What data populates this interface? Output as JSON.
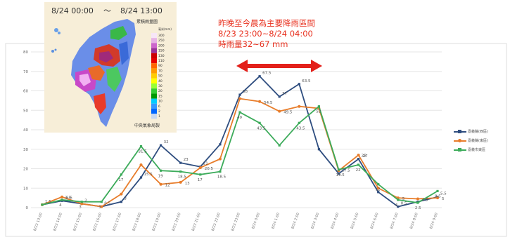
{
  "annotation": {
    "line1": "昨晚至今晨為主要降雨區間",
    "line2": "8/23 23:00~8/24 04:00",
    "line3": "時雨量32~67 mm"
  },
  "inset": {
    "title_left": "8/24 00:00",
    "title_sep": "～",
    "title_right": "8/24 13:00",
    "map_title": "累積雨量圖",
    "unit": "毫米(mm)",
    "scale_labels": [
      "300",
      "250",
      "200",
      "150",
      "130",
      "110",
      "90",
      "70",
      "50",
      "40",
      "30",
      "20",
      "15",
      "10",
      "6",
      "2",
      "1"
    ],
    "credit": "中央氣象局製"
  },
  "colors": {
    "blue": "#2e4d7f",
    "orange": "#e87d2b",
    "green": "#3cab5a",
    "arrow": "#e3201b",
    "annotation": "#e8301e"
  },
  "chart_data": {
    "type": "line",
    "ylim": [
      0,
      80
    ],
    "yticks": [
      0,
      10,
      20,
      30,
      40,
      50,
      60,
      70,
      80
    ],
    "categories": [
      "8/23 13:00",
      "8/23 14:00",
      "8/23 15:00",
      "8/23 16:00",
      "8/23 17:00",
      "8/23 18:00",
      "8/23 19:00",
      "8/23 20:00",
      "8/23 21:00",
      "8/23 22:00",
      "8/23 23:00",
      "8/24 0:00",
      "8/24 1:00",
      "8/24 2:00",
      "8/24 3:00",
      "8/24 4:00",
      "8/24 5:00",
      "8/24 6:00",
      "8/24 7:00",
      "8/24 8:00",
      "8/24 9:00"
    ],
    "series": [
      {
        "name": "嘉義縣(西區)",
        "color": "#2e4d7f",
        "values": [
          1.5,
          3.5,
          2,
          0.5,
          3,
          15.5,
          32,
          23,
          21,
          32.5,
          58,
          67.5,
          57,
          63.5,
          30,
          17.5,
          25,
          8,
          0.5,
          3,
          5.5
        ],
        "labels": [
          "1.5",
          "3.5",
          "2",
          "0.5",
          "3",
          "15.5",
          "32",
          "23",
          "21",
          "",
          "58",
          "67.5",
          "57",
          "63.5",
          "",
          "17.5",
          "25",
          "",
          "0.5",
          "",
          "5.5"
        ]
      },
      {
        "name": "嘉義縣(東區)",
        "color": "#e87d2b",
        "values": [
          1.5,
          5.5,
          2,
          0.5,
          7,
          22,
          12,
          13,
          20.5,
          25,
          56,
          54.5,
          49.5,
          52,
          51,
          19,
          27,
          10,
          5,
          4.5,
          5
        ],
        "labels": [
          "",
          "5.5",
          "",
          "",
          "",
          "",
          "12",
          "13",
          "20.5",
          "",
          "",
          "54.5",
          "49.5",
          "",
          "",
          "",
          "27",
          "",
          "5",
          "4.5",
          "5"
        ]
      },
      {
        "name": "嘉義市東區",
        "color": "#3cab5a",
        "values": [
          1.5,
          4,
          3,
          3,
          17,
          31.5,
          19,
          18.5,
          17,
          18.5,
          49,
          43.5,
          32,
          43.5,
          52,
          19.5,
          22,
          12,
          4,
          2.5,
          8.5
        ],
        "labels": [
          "",
          "4",
          "3",
          "3",
          "17",
          "31.5",
          "19",
          "18.5",
          "17",
          "18.5",
          "49",
          "43.5",
          "",
          "43.5",
          "52",
          "19.5",
          "22",
          "12",
          "4",
          "2.5",
          "8.5"
        ]
      }
    ],
    "grid": true,
    "legend": "right"
  }
}
